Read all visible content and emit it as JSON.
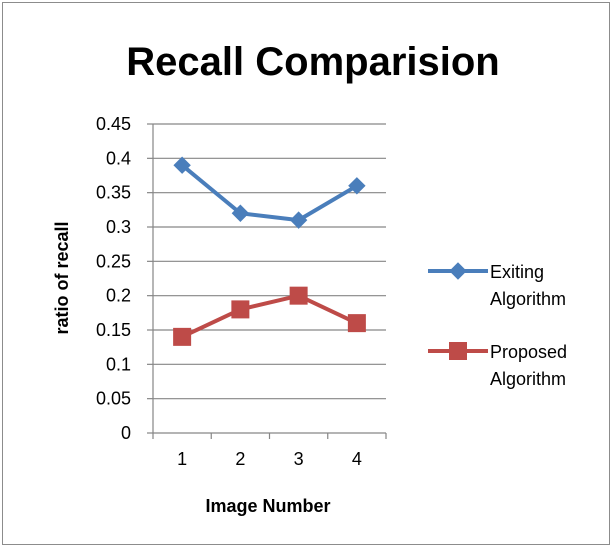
{
  "chart_data": {
    "type": "line",
    "title": "Recall Comparision",
    "xlabel": "Image Number",
    "ylabel": "ratio of recall",
    "categories": [
      "1",
      "2",
      "3",
      "4"
    ],
    "ylim": [
      0,
      0.45
    ],
    "y_ticks": [
      "0",
      "0.05",
      "0.1",
      "0.15",
      "0.2",
      "0.25",
      "0.3",
      "0.35",
      "0.4",
      "0.45"
    ],
    "y_tick_values": [
      0,
      0.05,
      0.1,
      0.15,
      0.2,
      0.25,
      0.3,
      0.35,
      0.4,
      0.45
    ],
    "grid": "horizontal",
    "legend_position": "right",
    "series": [
      {
        "name_lines": [
          "Exiting",
          "Algorithm"
        ],
        "name": "Exiting Algorithm",
        "values": [
          0.39,
          0.32,
          0.31,
          0.36
        ],
        "color": "#4a7ebb",
        "marker": "diamond"
      },
      {
        "name_lines": [
          "Proposed",
          "Algorithm"
        ],
        "name": "Proposed Algorithm",
        "values": [
          0.14,
          0.18,
          0.2,
          0.16
        ],
        "color": "#be4b48",
        "marker": "square"
      }
    ]
  }
}
